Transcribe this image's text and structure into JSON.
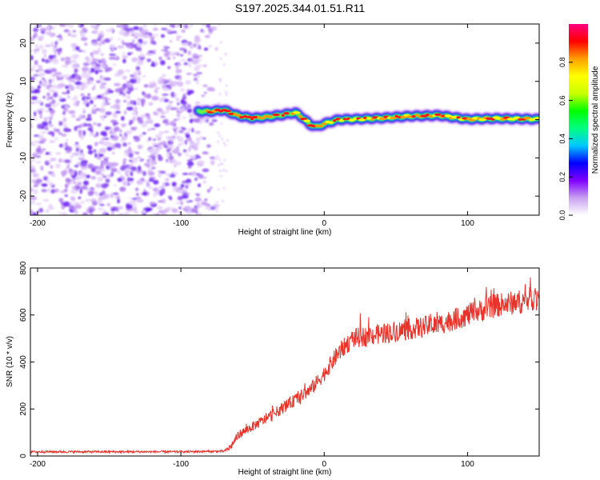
{
  "figure_title": "S197.2025.344.01.51.R11",
  "chart_data": [
    {
      "type": "heatmap",
      "title": "",
      "xlabel": "Height of straight line (km)",
      "ylabel": "Frequency (Hz)",
      "xlim": [
        -205,
        150
      ],
      "ylim": [
        -25,
        25
      ],
      "x_ticks": [
        -200,
        -100,
        0,
        100
      ],
      "y_ticks": [
        -20,
        -10,
        0,
        10,
        20
      ],
      "noise_region_x": [
        -205,
        -75
      ],
      "ridge_profile": {
        "x": [
          -88,
          -80,
          -70,
          -60,
          -50,
          -40,
          -30,
          -20,
          -15,
          -10,
          -5,
          0,
          10,
          20,
          40,
          60,
          80,
          100,
          120,
          150
        ],
        "y": [
          2.2,
          2.1,
          2.5,
          1.0,
          0.4,
          0.7,
          1.2,
          1.8,
          0.5,
          -1.3,
          -1.9,
          -1.1,
          0.0,
          0.1,
          0.4,
          0.9,
          1.1,
          0.1,
          0.3,
          0.1
        ]
      },
      "colorbar": {
        "label": "Normalized spectral amplitude",
        "range": [
          0,
          1
        ],
        "ticks": [
          0.0,
          0.2,
          0.4,
          0.6,
          0.8
        ],
        "tick_labels": [
          "0.0",
          "0.2",
          "0.4",
          "0.6",
          "0.8"
        ],
        "stops": [
          "#ffffff",
          "#c8a0f0",
          "#8000ff",
          "#0000ff",
          "#00c8ff",
          "#00ff80",
          "#00ff00",
          "#c8ff00",
          "#ffff00",
          "#ffa000",
          "#ff0000",
          "#ff0080"
        ]
      }
    },
    {
      "type": "line",
      "title": "",
      "xlabel": "Height of straight line (km)",
      "ylabel": "SNR (10 * v/v)",
      "xlim": [
        -205,
        150
      ],
      "ylim": [
        0,
        800
      ],
      "x_ticks": [
        -200,
        -100,
        0,
        100
      ],
      "y_ticks": [
        0,
        200,
        400,
        600,
        800
      ],
      "series": [
        {
          "name": "SNR",
          "color": "#e8322a",
          "envelope_x": [
            -205,
            -100,
            -70,
            -65,
            -60,
            -40,
            -20,
            -10,
            0,
            10,
            20,
            40,
            60,
            80,
            100,
            120,
            140,
            150
          ],
          "envelope_y": [
            18,
            18,
            20,
            40,
            90,
            160,
            240,
            280,
            350,
            440,
            500,
            520,
            540,
            560,
            600,
            640,
            660,
            680
          ]
        }
      ]
    }
  ]
}
